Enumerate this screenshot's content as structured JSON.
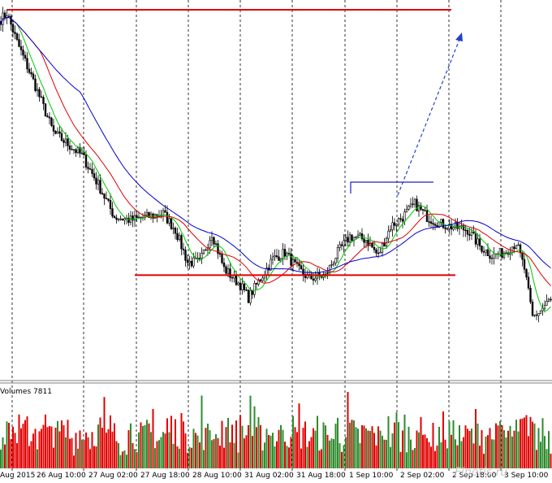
{
  "volumes_label": "Volumes 7811",
  "watermark": "Finotis.ru",
  "colors": {
    "bull": "#000000",
    "bear": "#000000",
    "ma_fast": "#00c800",
    "ma_mid": "#e00000",
    "ma_slow": "#0000d0",
    "level": "#e00000",
    "channel": "#2020c0",
    "arrow": "#2040d0",
    "vol_up": "#2e8b2e",
    "vol_down": "#e00000",
    "grid": "#000000"
  },
  "chart_data": {
    "type": "candlestick",
    "title": "",
    "xlabel": "",
    "ylabel": "",
    "ylim": [
      0,
      100
    ],
    "grid": "vertical dashed",
    "x_ticks": [
      "Aug 2015",
      "26 Aug 10:00",
      "27 Aug 02:00",
      "27 Aug 18:00",
      "28 Aug 10:00",
      "31 Aug 02:00",
      "31 Aug 18:00",
      "1 Sep 10:00",
      "2 Sep 02:00",
      "2 Sep 18:00",
      "3 Sep 10:00"
    ],
    "close_anchors": [
      [
        0,
        97
      ],
      [
        3,
        99
      ],
      [
        8,
        90
      ],
      [
        16,
        78
      ],
      [
        26,
        62
      ],
      [
        34,
        58
      ],
      [
        40,
        55
      ],
      [
        48,
        46
      ],
      [
        56,
        36
      ],
      [
        64,
        35
      ],
      [
        72,
        36
      ],
      [
        80,
        37
      ],
      [
        86,
        32
      ],
      [
        92,
        22
      ],
      [
        98,
        22
      ],
      [
        104,
        31
      ],
      [
        110,
        20
      ],
      [
        118,
        15
      ],
      [
        122,
        11
      ],
      [
        128,
        17
      ],
      [
        134,
        23
      ],
      [
        140,
        25
      ],
      [
        146,
        20
      ],
      [
        152,
        17
      ],
      [
        160,
        18
      ],
      [
        166,
        25
      ],
      [
        172,
        30
      ],
      [
        180,
        29
      ],
      [
        186,
        24
      ],
      [
        192,
        33
      ],
      [
        198,
        36
      ],
      [
        204,
        40
      ],
      [
        210,
        36
      ],
      [
        216,
        34
      ],
      [
        222,
        33
      ],
      [
        230,
        32
      ],
      [
        236,
        27
      ],
      [
        242,
        24
      ],
      [
        248,
        25
      ],
      [
        254,
        28
      ],
      [
        258,
        20
      ],
      [
        262,
        5
      ],
      [
        266,
        7
      ],
      [
        270,
        10
      ]
    ],
    "levels": [
      {
        "name": "resistance",
        "y": 100,
        "x_range": [
          3,
          222
        ]
      },
      {
        "name": "support",
        "y": 18,
        "x_range": [
          66,
          224
        ]
      }
    ],
    "series": [
      {
        "name": "ma_fast",
        "period": 8
      },
      {
        "name": "ma_mid",
        "period": 20
      },
      {
        "name": "ma_slow",
        "period": 40
      }
    ],
    "volume": {
      "ylim": [
        0,
        8000
      ]
    }
  }
}
